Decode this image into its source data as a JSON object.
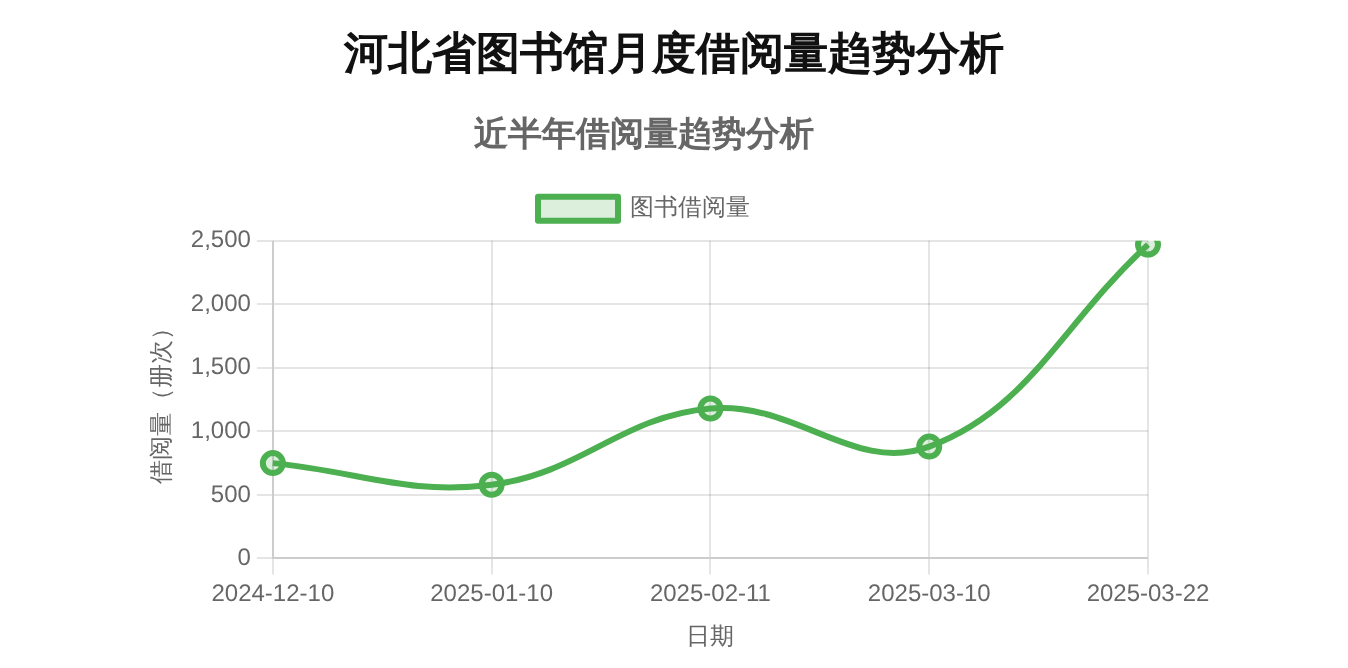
{
  "chart_data": {
    "type": "line",
    "title": "河北省图书馆月度借阅量趋势分析",
    "subtitle": "近半年借阅量趋势分析",
    "xlabel": "日期",
    "ylabel": "借阅量（册次）",
    "categories": [
      "2024-12-10",
      "2025-01-10",
      "2025-02-11",
      "2025-03-10",
      "2025-03-22"
    ],
    "series": [
      {
        "name": "图书借阅量",
        "color": "#4caf50",
        "values": [
          750,
          580,
          1180,
          880,
          2470
        ]
      }
    ],
    "ylim": [
      0,
      2500
    ],
    "yticks": [
      0,
      500,
      {
        "value": 1000,
        "label": "1,000"
      },
      {
        "value": 1500,
        "label": "1,500"
      },
      {
        "value": 2000,
        "label": "2,000"
      },
      {
        "value": 2500,
        "label": "2,500"
      }
    ],
    "grid": true,
    "legend": "top",
    "marker": "circle",
    "line_style": "solid"
  }
}
